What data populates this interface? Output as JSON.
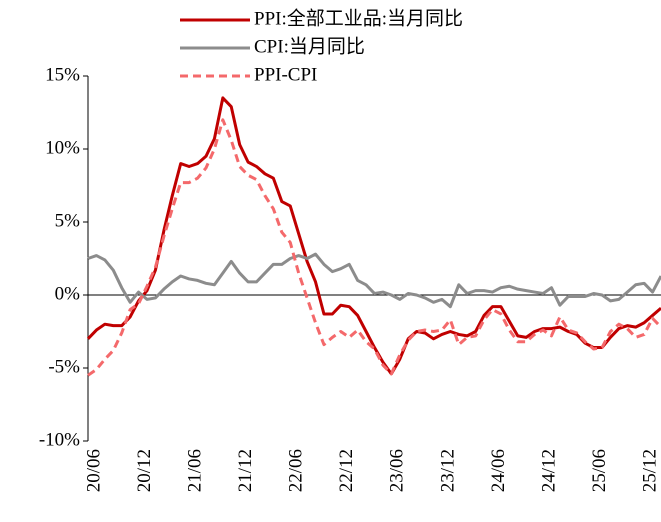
{
  "chart_data": {
    "type": "line",
    "categories": [
      "20/06",
      null,
      null,
      null,
      null,
      null,
      "20/12",
      null,
      null,
      null,
      null,
      null,
      "21/06",
      null,
      null,
      null,
      null,
      null,
      "21/12",
      null,
      null,
      null,
      null,
      null,
      "22/06",
      null,
      null,
      null,
      null,
      null,
      "22/12",
      null,
      null,
      null,
      null,
      null,
      "23/06",
      null,
      null,
      null,
      null,
      null,
      "23/12",
      null,
      null,
      null,
      null,
      null,
      "24/06",
      null,
      null,
      null,
      null,
      null,
      "24/12",
      null,
      null,
      null,
      null,
      null,
      "25/06",
      null,
      null,
      null,
      null,
      null,
      "25/12",
      null,
      null
    ],
    "series": [
      {
        "name": "PPI:全部工业品:当月同比",
        "color": "#c00000",
        "dash": false,
        "values": [
          -3.0,
          -2.4,
          -2.0,
          -2.1,
          -2.1,
          -1.5,
          -0.4,
          0.3,
          1.7,
          4.4,
          6.8,
          9.0,
          8.8,
          9.0,
          9.5,
          10.7,
          13.5,
          12.9,
          10.3,
          9.1,
          8.8,
          8.3,
          8.0,
          6.4,
          6.1,
          4.2,
          2.3,
          0.9,
          -1.3,
          -1.3,
          -0.7,
          -0.8,
          -1.4,
          -2.5,
          -3.6,
          -4.6,
          -5.4,
          -4.4,
          -3.0,
          -2.5,
          -2.6,
          -3.0,
          -2.7,
          -2.5,
          -2.7,
          -2.8,
          -2.5,
          -1.4,
          -0.8,
          -0.8,
          -1.8,
          -2.8,
          -2.9,
          -2.5,
          -2.3,
          -2.3,
          -2.2,
          -2.5,
          -2.7,
          -3.3,
          -3.6,
          -3.6,
          -2.9,
          -2.3,
          -2.1,
          -2.2,
          -1.9,
          -1.4,
          -0.9
        ]
      },
      {
        "name": "CPI:当月同比",
        "color": "#8c8c8c",
        "dash": false,
        "values": [
          2.5,
          2.7,
          2.4,
          1.7,
          0.5,
          -0.5,
          0.2,
          -0.3,
          -0.2,
          0.4,
          0.9,
          1.3,
          1.1,
          1.0,
          0.8,
          0.7,
          1.5,
          2.3,
          1.5,
          0.9,
          0.9,
          1.5,
          2.1,
          2.1,
          2.5,
          2.7,
          2.5,
          2.8,
          2.1,
          1.6,
          1.8,
          2.1,
          1.0,
          0.7,
          0.1,
          0.2,
          0.0,
          -0.3,
          0.1,
          0.0,
          -0.2,
          -0.5,
          -0.3,
          -0.8,
          0.7,
          0.1,
          0.3,
          0.3,
          0.2,
          0.5,
          0.6,
          0.4,
          0.3,
          0.2,
          0.1,
          0.5,
          -0.7,
          -0.1,
          -0.1,
          -0.1,
          0.1,
          0.0,
          -0.4,
          -0.3,
          0.2,
          0.7,
          0.8,
          0.2,
          1.3
        ]
      },
      {
        "name": "PPI-CPI",
        "color": "#f4696b",
        "dash": true,
        "values": [
          -5.5,
          -5.1,
          -4.4,
          -3.8,
          -2.6,
          -1.0,
          -0.6,
          0.6,
          1.9,
          4.0,
          5.9,
          7.7,
          7.7,
          8.0,
          8.7,
          10.0,
          12.0,
          10.6,
          8.8,
          8.2,
          7.9,
          6.8,
          5.9,
          4.3,
          3.6,
          1.5,
          -0.2,
          -1.9,
          -3.4,
          -2.9,
          -2.5,
          -2.9,
          -2.4,
          -3.2,
          -3.7,
          -4.8,
          -5.4,
          -4.1,
          -3.1,
          -2.5,
          -2.4,
          -2.5,
          -2.4,
          -1.7,
          -3.4,
          -2.9,
          -2.8,
          -1.7,
          -1.0,
          -1.3,
          -2.4,
          -3.2,
          -3.2,
          -2.7,
          -2.4,
          -2.8,
          -1.5,
          -2.4,
          -2.6,
          -3.2,
          -3.7,
          -3.6,
          -2.5,
          -2.0,
          -2.3,
          -2.9,
          -2.7,
          -1.6,
          -2.2
        ]
      }
    ],
    "ylim": [
      -10,
      15
    ],
    "yticks": [
      {
        "value": -10,
        "label": "-10%"
      },
      {
        "value": -5,
        "label": "-5%"
      },
      {
        "value": 0,
        "label": "0%"
      },
      {
        "value": 5,
        "label": "5%"
      },
      {
        "value": 10,
        "label": "10%"
      },
      {
        "value": 15,
        "label": "15%"
      }
    ],
    "legend": "top",
    "grid": false
  }
}
